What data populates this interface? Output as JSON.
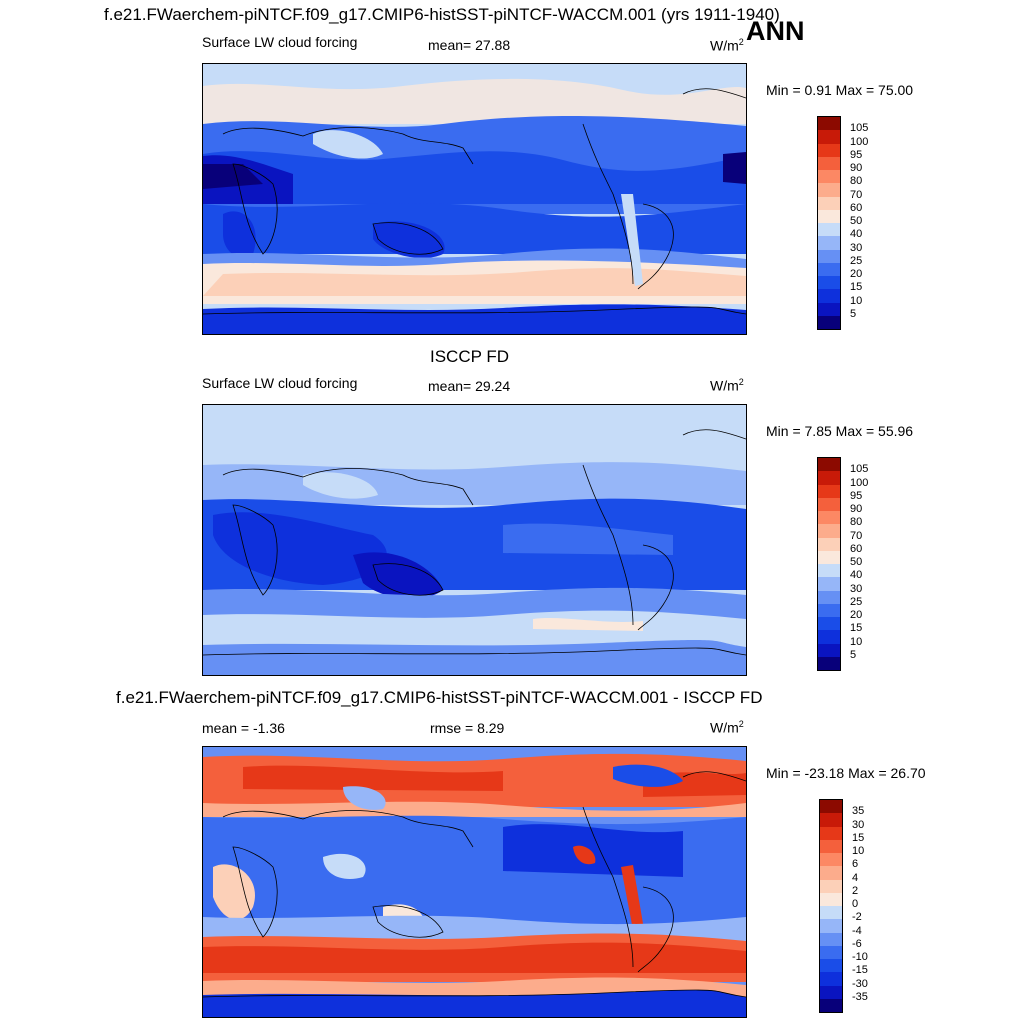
{
  "header": {
    "title": "f.e21.FWaerchem-piNTCF.f09_g17.CMIP6-histSST-piNTCF-WACCM.001 (yrs 1911-1940)",
    "season": "ANN"
  },
  "panels": [
    {
      "id": "model",
      "variable": "Surface LW cloud forcing",
      "stat_text": "mean=  27.88",
      "units_base": "W/m",
      "units_exp": "2",
      "minmax_text": "Min =   0.91 Max =  75.00",
      "colorbar": {
        "colors": [
          "#08007a",
          "#0a14c0",
          "#0e30dc",
          "#1a4de8",
          "#3a6cf0",
          "#6690f4",
          "#96b6f8",
          "#c6dcf8",
          "#fae8dc",
          "#fcd0b8",
          "#fcac8c",
          "#fc8864",
          "#f4603c",
          "#e63818",
          "#c81a08",
          "#8c0a00"
        ],
        "labels": [
          "5",
          "10",
          "15",
          "20",
          "25",
          "30",
          "40",
          "50",
          "60",
          "70",
          "80",
          "90",
          "95",
          "100",
          "105"
        ]
      }
    },
    {
      "id": "obs",
      "section_title": "ISCCP FD",
      "variable": "Surface LW cloud forcing",
      "stat_text": "mean=  29.24",
      "units_base": "W/m",
      "units_exp": "2",
      "minmax_text": "Min =   7.85 Max =  55.96",
      "colorbar": {
        "colors": [
          "#08007a",
          "#0a14c0",
          "#0e30dc",
          "#1a4de8",
          "#3a6cf0",
          "#6690f4",
          "#96b6f8",
          "#c6dcf8",
          "#fae8dc",
          "#fcd0b8",
          "#fcac8c",
          "#fc8864",
          "#f4603c",
          "#e63818",
          "#c81a08",
          "#8c0a00"
        ],
        "labels": [
          "5",
          "10",
          "15",
          "20",
          "25",
          "30",
          "40",
          "50",
          "60",
          "70",
          "80",
          "90",
          "95",
          "100",
          "105"
        ]
      }
    },
    {
      "id": "diff",
      "section_title": "f.e21.FWaerchem-piNTCF.f09_g17.CMIP6-histSST-piNTCF-WACCM.001 - ISCCP FD",
      "stat_text": "mean =  -1.36",
      "rmse_text": "rmse =   8.29",
      "units_base": "W/m",
      "units_exp": "2",
      "minmax_text": "Min = -23.18 Max =  26.70",
      "colorbar": {
        "colors": [
          "#08007a",
          "#0a14c0",
          "#0e30dc",
          "#1a4de8",
          "#3a6cf0",
          "#6690f4",
          "#96b6f8",
          "#c6dcf8",
          "#fae8dc",
          "#fcd0b8",
          "#fcac8c",
          "#fc8864",
          "#f4603c",
          "#e63818",
          "#c81a08",
          "#8c0a00"
        ],
        "labels": [
          "-35",
          "-30",
          "-15",
          "-10",
          "-6",
          "-4",
          "-2",
          "0",
          "2",
          "4",
          "6",
          "10",
          "15",
          "30",
          "35"
        ]
      }
    }
  ]
}
